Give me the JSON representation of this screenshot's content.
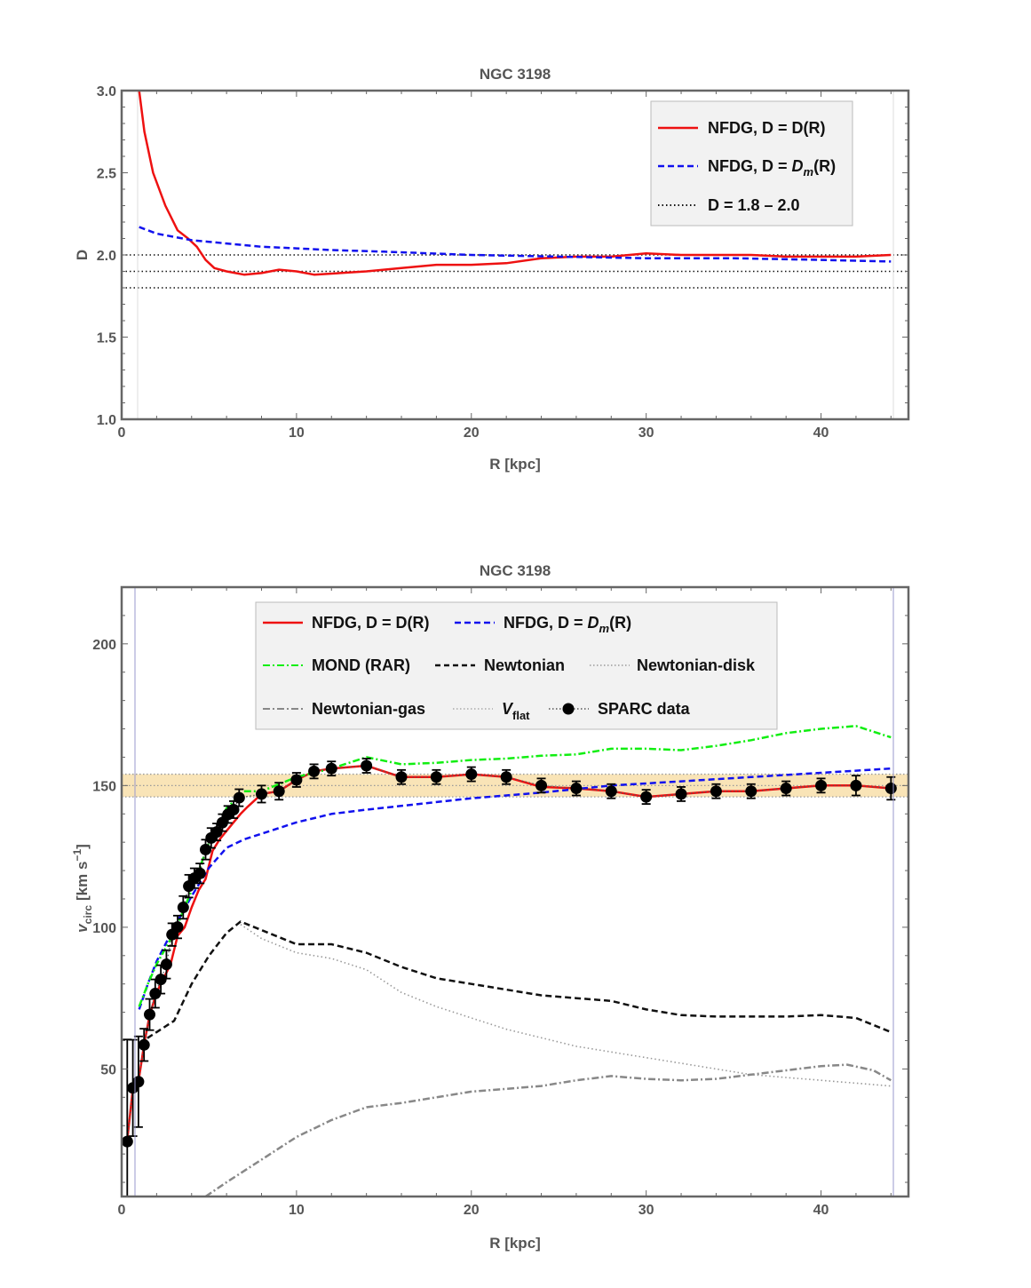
{
  "colors": {
    "nfdg_D": "#ee1111",
    "nfdg_Dm": "#1111ee",
    "mond": "#11ee11",
    "newtonian": "#111111",
    "newtonian_disk": "#999999",
    "newtonian_gas": "#888888",
    "vflat_band": "#f9e4b7",
    "sparc": "#000000",
    "frame": "#666666",
    "legend_bg": "#f2f2f2"
  },
  "chart_data": [
    {
      "type": "line",
      "title": "NGC 3198",
      "xlabel": "R [kpc]",
      "ylabel": "D",
      "xlim": [
        0,
        45
      ],
      "ylim": [
        1.0,
        3.0
      ],
      "xticks": [
        "0",
        "10",
        "20",
        "30",
        "40"
      ],
      "yticks": [
        "1.0",
        "1.5",
        "2.0",
        "2.5",
        "3.0"
      ],
      "legend": {
        "position": "top-right",
        "entries": [
          {
            "label_main": "NFDG, D = D(R)",
            "label_italic": "",
            "label_tail": ""
          },
          {
            "label_main": "NFDG, D = ",
            "label_italic": "D",
            "label_sub": "m",
            "label_tail": "(R)"
          },
          {
            "label_main": "D = 1.8 – 2.0",
            "label_italic": "",
            "label_tail": ""
          }
        ]
      },
      "series": [
        {
          "name": "NFDG, D = D(R)",
          "style": "solid",
          "color": "red",
          "x": [
            1.0,
            1.3,
            1.8,
            2.5,
            3.2,
            3.8,
            4.3,
            4.8,
            5.3,
            6.0,
            7.0,
            8.0,
            9.0,
            10.0,
            11.0,
            12.5,
            14.0,
            15.0,
            16.0,
            18.0,
            20.0,
            22.0,
            24.0,
            26.0,
            28.0,
            30.0,
            32.0,
            34.0,
            36.0,
            38.0,
            40.0,
            42.0,
            44.0
          ],
          "y": [
            3.0,
            2.75,
            2.5,
            2.3,
            2.15,
            2.1,
            2.05,
            1.97,
            1.92,
            1.9,
            1.88,
            1.89,
            1.91,
            1.9,
            1.88,
            1.89,
            1.9,
            1.91,
            1.92,
            1.94,
            1.94,
            1.95,
            1.98,
            1.99,
            1.99,
            2.01,
            2.0,
            2.0,
            2.0,
            1.99,
            1.99,
            1.99,
            2.0
          ]
        },
        {
          "name": "NFDG, D = Dm(R)",
          "style": "dashed",
          "color": "blue",
          "x": [
            1.0,
            2.0,
            3.0,
            4.0,
            5.0,
            6.0,
            8.0,
            10.0,
            12.0,
            15.0,
            20.0,
            25.0,
            30.0,
            35.0,
            40.0,
            44.0
          ],
          "y": [
            2.17,
            2.13,
            2.11,
            2.09,
            2.08,
            2.07,
            2.05,
            2.04,
            2.03,
            2.02,
            2.0,
            1.99,
            1.98,
            1.98,
            1.97,
            1.96
          ]
        },
        {
          "name": "D = 1.8",
          "style": "dotted",
          "color": "black",
          "x": [
            0,
            45
          ],
          "y": [
            1.8,
            1.8
          ]
        },
        {
          "name": "D = 1.9",
          "style": "dotted",
          "color": "black",
          "x": [
            0,
            45
          ],
          "y": [
            1.9,
            1.9
          ]
        },
        {
          "name": "D = 2.0",
          "style": "dotted",
          "color": "black",
          "x": [
            0,
            45
          ],
          "y": [
            2.0,
            2.0
          ]
        }
      ]
    },
    {
      "type": "line",
      "title": "NGC 3198",
      "xlabel": "R [kpc]",
      "ylabel_main": "v",
      "ylabel_sub": "circ",
      "ylabel_unit": "[km s",
      "ylabel_sup": "−1",
      "ylabel_end": "]",
      "xlim": [
        0,
        45
      ],
      "ylim": [
        5,
        220
      ],
      "xticks": [
        "0",
        "10",
        "20",
        "30",
        "40"
      ],
      "yticks": [
        "50",
        "100",
        "150",
        "200"
      ],
      "legend": {
        "position": "top-center",
        "entries": [
          {
            "label": "NFDG, D = D(R)"
          },
          {
            "label_main": "NFDG, D = ",
            "label_italic": "D",
            "label_sub": "m",
            "label_tail": "(R)"
          },
          {
            "label": "MOND (RAR)"
          },
          {
            "label": "Newtonian"
          },
          {
            "label": "Newtonian-disk"
          },
          {
            "label": "Newtonian-gas"
          },
          {
            "label_italic": "V",
            "label_sub": "flat"
          },
          {
            "label": "SPARC data"
          }
        ]
      },
      "vflat_band": {
        "center": 150,
        "low": 146,
        "high": 154
      },
      "series": [
        {
          "name": "NFDG, D = D(R)",
          "style": "solid",
          "color": "red",
          "x": [
            0.32,
            0.64,
            0.96,
            1.28,
            1.6,
            2.0,
            2.4,
            2.8,
            3.2,
            3.6,
            4.0,
            4.4,
            4.8,
            5.2,
            5.6,
            6.0,
            6.4,
            6.8,
            7.2,
            8.0,
            9.0,
            10.0,
            11.0,
            12.0,
            14.0,
            16.0,
            18.0,
            20.0,
            22.0,
            24.0,
            26.0,
            28.0,
            30.0,
            32.0,
            34.0,
            36.0,
            38.0,
            40.0,
            42.0,
            44.0
          ],
          "y": [
            25,
            43,
            45.5,
            58.5,
            69,
            77,
            82,
            87,
            97,
            100,
            107,
            113,
            117,
            127,
            131,
            134,
            137,
            140,
            142.5,
            147,
            148,
            152,
            155,
            156,
            157,
            153,
            153,
            154,
            153,
            149.5,
            149,
            148,
            146,
            147,
            148,
            148,
            149,
            150,
            150,
            149
          ]
        },
        {
          "name": "NFDG, D = Dm(R)",
          "style": "dashed",
          "color": "blue",
          "x": [
            1.0,
            1.5,
            2.0,
            3.0,
            4.0,
            5.0,
            6.0,
            7.0,
            8.0,
            10.0,
            12.0,
            14.0,
            17.0,
            20.0,
            24.0,
            28.0,
            32.0,
            36.0,
            40.0,
            44.0
          ],
          "y": [
            71,
            80,
            88,
            100,
            111,
            121,
            128,
            131,
            133,
            137,
            140,
            141.5,
            143.5,
            145.5,
            147.5,
            150,
            151.5,
            153,
            154.5,
            156
          ]
        },
        {
          "name": "MOND (RAR)",
          "style": "dashdot",
          "color": "green",
          "x": [
            1.0,
            1.5,
            2.0,
            3.0,
            4.0,
            5.0,
            6.0,
            7.0,
            8.0,
            10.0,
            12.0,
            14.0,
            16.0,
            18.0,
            20.0,
            22.0,
            24.0,
            26.0,
            28.0,
            30.0,
            32.0,
            34.0,
            36.0,
            38.0,
            40.0,
            42.0,
            44.0
          ],
          "y": [
            72,
            80,
            87,
            98,
            113,
            130,
            142,
            148,
            148,
            153,
            156,
            160,
            157.5,
            158,
            159,
            159.5,
            160.5,
            161,
            163,
            163,
            162.5,
            164,
            166,
            168.5,
            170,
            171,
            167
          ]
        },
        {
          "name": "Newtonian",
          "style": "dashed",
          "color": "black",
          "x": [
            1.0,
            1.5,
            2.0,
            3.0,
            4.0,
            5.0,
            6.0,
            6.8,
            8.0,
            10.0,
            12.0,
            14.0,
            16.0,
            18.0,
            20.0,
            22.0,
            24.0,
            26.0,
            28.0,
            30.0,
            32.0,
            34.0,
            36.0,
            38.0,
            40.0,
            42.0,
            44.0
          ],
          "y": [
            59,
            61,
            63,
            67,
            80,
            90,
            98,
            102,
            99,
            94,
            94,
            91,
            86,
            82,
            80,
            78,
            76,
            75,
            74,
            71,
            69,
            68.5,
            68.5,
            68.5,
            69,
            68,
            63
          ]
        },
        {
          "name": "Newtonian-disk",
          "style": "dotted",
          "color": "gray",
          "x": [
            6.8,
            8.0,
            10.0,
            12.0,
            14.0,
            16.0,
            18.0,
            20.0,
            22.0,
            24.0,
            26.0,
            28.0,
            30.0,
            32.0,
            34.0,
            36.0,
            38.0,
            40.0,
            42.0,
            44.0
          ],
          "y": [
            101,
            96,
            91,
            89,
            85,
            77,
            72,
            68,
            64,
            61,
            58,
            56,
            54,
            52,
            50,
            48,
            47,
            46,
            45,
            44
          ]
        },
        {
          "name": "Newtonian-gas",
          "style": "dashdot",
          "color": "gray",
          "x": [
            4.8,
            6.0,
            8.0,
            10.0,
            12.0,
            14.0,
            16.0,
            18.0,
            20.0,
            22.0,
            24.0,
            26.0,
            28.0,
            30.0,
            32.0,
            34.0,
            36.0,
            38.0,
            40.0,
            41.5,
            43.0,
            44.0
          ],
          "y": [
            5,
            10,
            18,
            26,
            32,
            36.5,
            38,
            40,
            42,
            43,
            44,
            46,
            47.5,
            46.5,
            46,
            46.5,
            48,
            49.5,
            51,
            51.5,
            49.5,
            46
          ]
        }
      ],
      "sparc": {
        "x": [
          0.32,
          0.64,
          0.96,
          1.28,
          1.6,
          1.92,
          2.24,
          2.56,
          2.88,
          3.2,
          3.52,
          3.84,
          4.16,
          4.48,
          4.8,
          5.12,
          5.44,
          5.76,
          6.08,
          6.4,
          6.72,
          8.0,
          9.0,
          10.0,
          11.0,
          12.0,
          14.0,
          16.0,
          18.0,
          20.0,
          22.0,
          24.0,
          26.0,
          28.0,
          30.0,
          32.0,
          34.0,
          36.0,
          38.0,
          40.0,
          42.0,
          44.0
        ],
        "y": [
          24.4,
          43.3,
          45.5,
          58.5,
          69.2,
          76.6,
          81.6,
          86.9,
          97.4,
          100.1,
          107,
          114.5,
          117.3,
          119,
          127.4,
          131.5,
          133.6,
          136.9,
          139.8,
          141.5,
          145.7,
          147,
          148,
          152,
          155,
          156,
          157,
          153,
          153,
          154,
          153,
          150,
          149,
          148,
          146,
          147,
          148,
          148,
          149,
          150,
          150,
          149
        ],
        "err": [
          36,
          17,
          16,
          5.7,
          5.5,
          5,
          5,
          5,
          4,
          4,
          4,
          4,
          3.5,
          3.5,
          3.5,
          3.5,
          3,
          3,
          3,
          3,
          3,
          3,
          3,
          2.5,
          2.5,
          2.5,
          2.5,
          2.5,
          2.5,
          2.5,
          2.5,
          2.5,
          2.5,
          2.5,
          2.5,
          2.5,
          2.5,
          2.5,
          2.5,
          2.5,
          3.5,
          4
        ]
      }
    }
  ]
}
